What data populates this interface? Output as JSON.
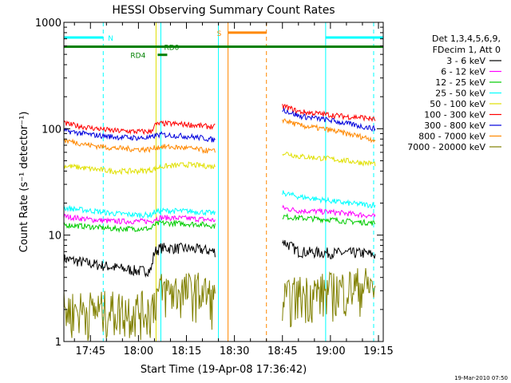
{
  "chart_data": {
    "type": "line",
    "title": "HESSI Observing Summary Count Rates",
    "xlabel": "Start Time (19-Apr-08 17:36:42)",
    "ylabel": "Count Rate (s⁻¹ detector⁻¹)",
    "yscale": "log",
    "ylim": [
      1,
      1000
    ],
    "xlim": [
      "17:36:42",
      "19:16:30"
    ],
    "x_ticks": [
      "17:45",
      "18:00",
      "18:15",
      "18:30",
      "18:45",
      "19:00",
      "19:15"
    ],
    "y_ticks": [
      "1",
      "10",
      "100",
      "1000"
    ],
    "grid": false,
    "legend_position": "right",
    "legend_header": [
      "Det 1,3,4,5,6,9,",
      "FDecim 1, Att 0"
    ],
    "footer_timestamp": "19-Mar-2010 07:50",
    "series": [
      {
        "name": "3 - 6 keV",
        "color": "#000000",
        "segments": [
          {
            "x": [
              "17:36:42",
              "17:45",
              "17:52",
              "18:00",
              "18:04",
              "18:05",
              "18:07",
              "18:15",
              "18:20",
              "18:24"
            ],
            "y": [
              6.0,
              5.4,
              5.0,
              4.6,
              4.7,
              7.0,
              7.6,
              7.5,
              7.3,
              7.0
            ]
          },
          {
            "x": [
              "18:45",
              "18:50",
              "19:00",
              "19:05",
              "19:10",
              "19:14"
            ],
            "y": [
              8.8,
              7.0,
              6.8,
              6.8,
              6.8,
              6.5
            ]
          }
        ]
      },
      {
        "name": "6 - 12 keV",
        "color": "#ff00ff",
        "segments": [
          {
            "x": [
              "17:36:42",
              "17:45",
              "17:52",
              "18:00",
              "18:04",
              "18:05",
              "18:07",
              "18:15",
              "18:20",
              "18:24"
            ],
            "y": [
              15,
              14,
              13.5,
              13.5,
              13.5,
              14.2,
              14.6,
              14.4,
              14.1,
              13.8
            ]
          },
          {
            "x": [
              "18:45",
              "18:50",
              "19:00",
              "19:05",
              "19:10",
              "19:14"
            ],
            "y": [
              18,
              17,
              16.5,
              16,
              15.5,
              15
            ]
          }
        ]
      },
      {
        "name": "12 - 25 keV",
        "color": "#00cc00",
        "segments": [
          {
            "x": [
              "17:36:42",
              "17:45",
              "17:52",
              "18:00",
              "18:04",
              "18:05",
              "18:07",
              "18:15",
              "18:20",
              "18:24"
            ],
            "y": [
              12.5,
              12,
              11.5,
              11.5,
              11.5,
              12.5,
              13,
              12.8,
              12.6,
              12.2
            ]
          },
          {
            "x": [
              "18:45",
              "18:50",
              "19:00",
              "19:05",
              "19:10",
              "19:14"
            ],
            "y": [
              15,
              14.5,
              14,
              13.5,
              13.2,
              13
            ]
          }
        ]
      },
      {
        "name": "25 - 50 keV",
        "color": "#00ffff",
        "segments": [
          {
            "x": [
              "17:36:42",
              "17:45",
              "17:52",
              "18:00",
              "18:04",
              "18:05",
              "18:07",
              "18:15",
              "18:20",
              "18:24"
            ],
            "y": [
              18,
              17,
              16,
              15.5,
              15.5,
              16.5,
              17,
              16.8,
              16.5,
              16
            ]
          },
          {
            "x": [
              "18:45",
              "18:50",
              "19:00",
              "19:05",
              "19:10",
              "19:14"
            ],
            "y": [
              25,
              23,
              21,
              20,
              19.5,
              19
            ]
          }
        ]
      },
      {
        "name": "50 - 100 keV",
        "color": "#e0e000",
        "segments": [
          {
            "x": [
              "17:36:42",
              "17:45",
              "17:52",
              "18:00",
              "18:04",
              "18:05",
              "18:07",
              "18:15",
              "18:20",
              "18:24"
            ],
            "y": [
              45,
              42,
              40,
              40,
              41,
              42,
              44,
              46,
              45,
              44
            ]
          },
          {
            "x": [
              "18:45",
              "18:50",
              "19:00",
              "19:05",
              "19:10",
              "19:14"
            ],
            "y": [
              60,
              55,
              52,
              50,
              48,
              47
            ]
          }
        ]
      },
      {
        "name": "100 - 300 keV",
        "color": "#ff0000",
        "segments": [
          {
            "x": [
              "17:36:42",
              "17:45",
              "17:52",
              "18:00",
              "18:04",
              "18:05",
              "18:07",
              "18:15",
              "18:20",
              "18:24"
            ],
            "y": [
              112,
              102,
              96,
              94,
              94,
              108,
              112,
              110,
              106,
              104
            ]
          },
          {
            "x": [
              "18:45",
              "18:50",
              "19:00",
              "19:05",
              "19:10",
              "19:14"
            ],
            "y": [
              165,
              145,
              135,
              130,
              128,
              122
            ]
          }
        ]
      },
      {
        "name": "300 - 800 keV",
        "color": "#0000dd",
        "segments": [
          {
            "x": [
              "17:36:42",
              "17:45",
              "17:52",
              "18:00",
              "18:04",
              "18:05",
              "18:07",
              "18:15",
              "18:20",
              "18:24"
            ],
            "y": [
              96,
              88,
              84,
              82,
              82,
              86,
              88,
              85,
              82,
              78
            ]
          },
          {
            "x": [
              "18:45",
              "18:50",
              "19:00",
              "19:05",
              "19:10",
              "19:14"
            ],
            "y": [
              152,
              132,
              120,
              112,
              105,
              100
            ]
          }
        ]
      },
      {
        "name": "800 - 7000 keV",
        "color": "#ff8800",
        "segments": [
          {
            "x": [
              "17:36:42",
              "17:45",
              "17:52",
              "18:00",
              "18:04",
              "18:05",
              "18:07",
              "18:15",
              "18:20",
              "18:24"
            ],
            "y": [
              78,
              70,
              66,
              64,
              64,
              66,
              68,
              66,
              63,
              61
            ]
          },
          {
            "x": [
              "18:45",
              "18:50",
              "19:00",
              "19:05",
              "19:10",
              "19:14"
            ],
            "y": [
              122,
              108,
              97,
              90,
              84,
              78
            ]
          }
        ]
      },
      {
        "name": "7000 - 20000 keV",
        "color": "#808000",
        "segments": [
          {
            "x": [
              "17:36:42",
              "17:45",
              "17:52",
              "18:00",
              "18:04",
              "18:05",
              "18:07",
              "18:15",
              "18:20",
              "18:24"
            ],
            "y": [
              2.0,
              2.0,
              2.0,
              2.0,
              2.0,
              2.6,
              3.0,
              3.0,
              3.0,
              2.4
            ]
          },
          {
            "x": [
              "18:45",
              "18:50",
              "19:00",
              "19:05",
              "19:10",
              "19:14"
            ],
            "y": [
              2.4,
              2.8,
              3.0,
              3.2,
              3.4,
              3.3
            ]
          }
        ]
      }
    ],
    "state_bars": [
      {
        "label": "N",
        "color": "#00ffff",
        "x_start": "17:36:42",
        "x_end": "17:49:00",
        "y": 720
      },
      {
        "label": "N",
        "color": "#00ffff",
        "x_start": "18:58:30",
        "x_end": "19:16:30",
        "y": 720
      },
      {
        "label": "S",
        "color": "#ff8800",
        "x_start": "18:28:00",
        "x_end": "18:40:00",
        "y": 800
      },
      {
        "label": "RD0",
        "color": "#008000",
        "x_start": "17:36:42",
        "x_end": "19:16:30",
        "y": 590
      },
      {
        "label": "RD4",
        "color": "#008000",
        "x_start": "18:06:00",
        "x_end": "18:09:00",
        "y": 495
      }
    ],
    "vertical_markers": [
      {
        "x": "17:49:00",
        "color": "#00ffff",
        "style": "dashed"
      },
      {
        "x": "18:05:30",
        "color": "#e0e000",
        "style": "solid"
      },
      {
        "x": "18:07:00",
        "color": "#00ffff",
        "style": "solid"
      },
      {
        "x": "18:25:00",
        "color": "#00ffff",
        "style": "solid"
      },
      {
        "x": "18:28:00",
        "color": "#ff8800",
        "style": "solid"
      },
      {
        "x": "18:40:00",
        "color": "#ff8800",
        "style": "dashed"
      },
      {
        "x": "18:58:30",
        "color": "#00ffff",
        "style": "solid"
      },
      {
        "x": "19:13:30",
        "color": "#00ffff",
        "style": "dashed"
      }
    ]
  }
}
